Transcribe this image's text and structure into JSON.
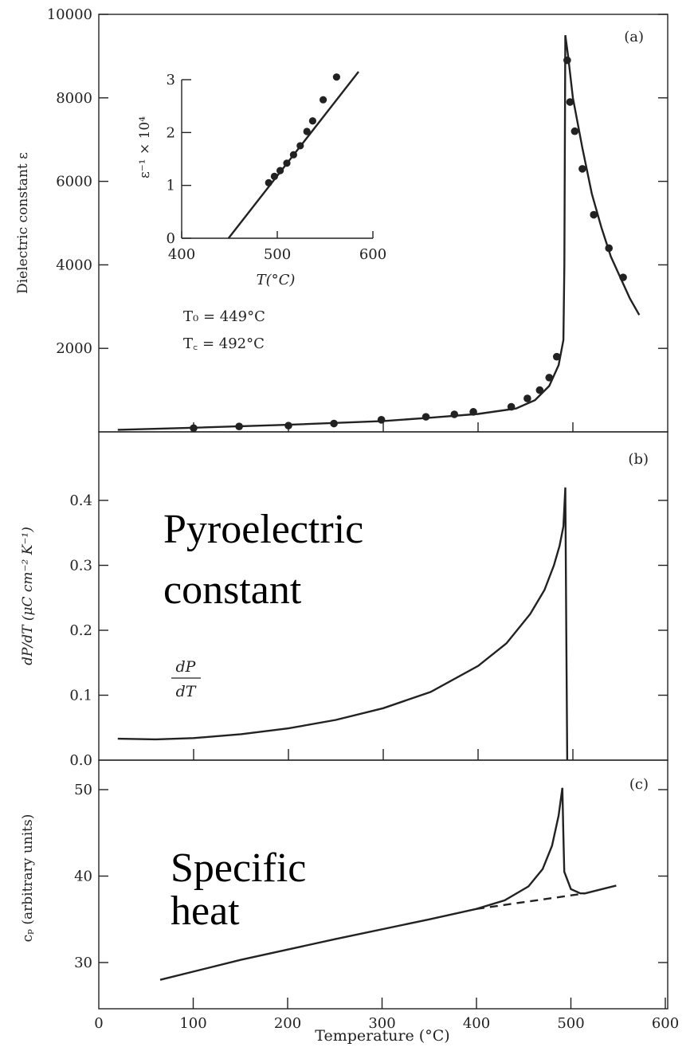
{
  "chart_data": [
    {
      "type": "line",
      "panel_tag": "(a)",
      "ylabel": "Dielectric constant ε",
      "xlim": [
        0,
        600
      ],
      "ylim": [
        0,
        10000
      ],
      "y_ticks": [
        2000,
        4000,
        6000,
        8000,
        10000
      ],
      "x_ticks": [
        0,
        100,
        200,
        300,
        400,
        500,
        600
      ],
      "annotations": [
        "T₀ = 449°C",
        "T꜀ = 492°C"
      ],
      "series": [
        {
          "kind": "line",
          "x": [
            20,
            100,
            200,
            300,
            350,
            400,
            440,
            460,
            475,
            485,
            490,
            491,
            492,
            495,
            500,
            510,
            520,
            530,
            540,
            550,
            560,
            570
          ],
          "y": [
            50,
            100,
            170,
            260,
            340,
            430,
            560,
            760,
            1100,
            1600,
            2200,
            4000,
            9500,
            9000,
            8000,
            6800,
            5700,
            4900,
            4200,
            3700,
            3200,
            2800
          ]
        },
        {
          "kind": "scatter",
          "x": [
            100,
            148,
            200,
            248,
            298,
            345,
            375,
            395,
            435,
            452,
            465,
            475,
            483,
            494,
            497,
            502,
            510,
            522,
            538,
            553
          ],
          "y": [
            90,
            130,
            150,
            200,
            290,
            360,
            420,
            480,
            600,
            800,
            1000,
            1300,
            1800,
            8900,
            7900,
            7200,
            6300,
            5200,
            4400,
            3700
          ]
        }
      ],
      "inset": {
        "ylabel": "ε⁻¹ × 10⁴",
        "xlabel": "T(°C)",
        "xlim": [
          400,
          600
        ],
        "ylim": [
          0,
          3.2
        ],
        "x_ticks": [
          400,
          500,
          600
        ],
        "y_ticks": [
          0,
          1,
          2,
          3
        ],
        "series": [
          {
            "kind": "line",
            "x": [
              449,
              585
            ],
            "y": [
              0,
              3.15
            ]
          },
          {
            "kind": "scatter",
            "x": [
              491,
              497,
              503,
              510,
              517,
              524,
              531,
              537,
              548,
              562
            ],
            "y": [
              1.05,
              1.17,
              1.28,
              1.42,
              1.58,
              1.75,
              2.02,
              2.22,
              2.62,
              3.05
            ]
          }
        ]
      }
    },
    {
      "type": "line",
      "panel_tag": "(b)",
      "ylabel": "dP/dT (μC cm⁻² K⁻¹)",
      "xlim": [
        0,
        600
      ],
      "ylim": [
        0,
        0.45
      ],
      "y_ticks": [
        0.0,
        0.1,
        0.2,
        0.3,
        0.4
      ],
      "x_ticks": [
        0,
        100,
        200,
        300,
        400,
        500,
        600
      ],
      "label": "Pyroelectric constant",
      "formula_num": "dP",
      "formula_den": "dT",
      "series": [
        {
          "kind": "line",
          "x": [
            20,
            60,
            100,
            150,
            200,
            250,
            300,
            350,
            400,
            430,
            455,
            470,
            480,
            486,
            490,
            492,
            493,
            494
          ],
          "y": [
            0.033,
            0.032,
            0.034,
            0.04,
            0.049,
            0.062,
            0.08,
            0.105,
            0.145,
            0.18,
            0.225,
            0.262,
            0.3,
            0.33,
            0.36,
            0.42,
            0.2,
            0.0
          ]
        }
      ]
    },
    {
      "type": "line",
      "panel_tag": "(c)",
      "ylabel": "cₚ (arbitrary units)",
      "xlabel": "Temperature (°C)",
      "xlim": [
        0,
        620
      ],
      "ylim": [
        26,
        53
      ],
      "y_ticks": [
        30,
        40,
        50
      ],
      "x_ticks": [
        0,
        100,
        200,
        300,
        400,
        500,
        600
      ],
      "x_tick_labels": [
        "0",
        "100",
        "200",
        "300",
        "400",
        "500",
        "600"
      ],
      "label": "Specific heat",
      "series": [
        {
          "kind": "line",
          "x": [
            65,
            150,
            250,
            350,
            400,
            430,
            455,
            470,
            480,
            487,
            491,
            492,
            493,
            500,
            510,
            515
          ],
          "y": [
            28.0,
            30.3,
            32.7,
            35.0,
            36.2,
            37.2,
            38.8,
            40.8,
            43.5,
            47.0,
            50.2,
            45.0,
            40.5,
            38.5,
            38.0,
            38.0
          ]
        },
        {
          "kind": "line",
          "x": [
            515,
            548
          ],
          "y": [
            38.0,
            38.9
          ]
        },
        {
          "kind": "dashed",
          "x": [
            400,
            515
          ],
          "y": [
            36.2,
            38.0
          ]
        }
      ]
    }
  ]
}
